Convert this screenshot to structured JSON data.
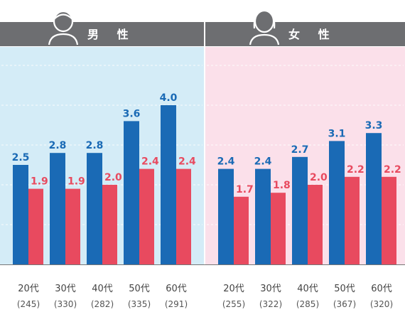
{
  "chart_data": [
    {
      "type": "bar",
      "title": "男 性",
      "categories": [
        "20代",
        "30代",
        "40代",
        "50代",
        "60代"
      ],
      "sample_sizes": [
        "(245)",
        "(330)",
        "(282)",
        "(335)",
        "(291)"
      ],
      "series": [
        {
          "values": [
            2.5,
            2.8,
            2.8,
            3.6,
            4.0
          ],
          "color": "#1a6ab5"
        },
        {
          "values": [
            1.9,
            1.9,
            2.0,
            2.4,
            2.4
          ],
          "color": "#e84a5f"
        }
      ],
      "ylim": [
        0,
        5
      ],
      "grid": true,
      "background": "#d4ecf7",
      "icon": "male-person-icon"
    },
    {
      "type": "bar",
      "title": "女 性",
      "categories": [
        "20代",
        "30代",
        "40代",
        "50代",
        "60代"
      ],
      "sample_sizes": [
        "(255)",
        "(322)",
        "(285)",
        "(367)",
        "(320)"
      ],
      "series": [
        {
          "values": [
            2.4,
            2.4,
            2.7,
            3.1,
            3.3
          ],
          "color": "#1a6ab5"
        },
        {
          "values": [
            1.7,
            1.8,
            2.0,
            2.2,
            2.2
          ],
          "color": "#e84a5f"
        }
      ],
      "ylim": [
        0,
        5
      ],
      "grid": true,
      "background": "#fbe0ea",
      "icon": "female-person-icon"
    }
  ],
  "header_color": "#6d6e71"
}
